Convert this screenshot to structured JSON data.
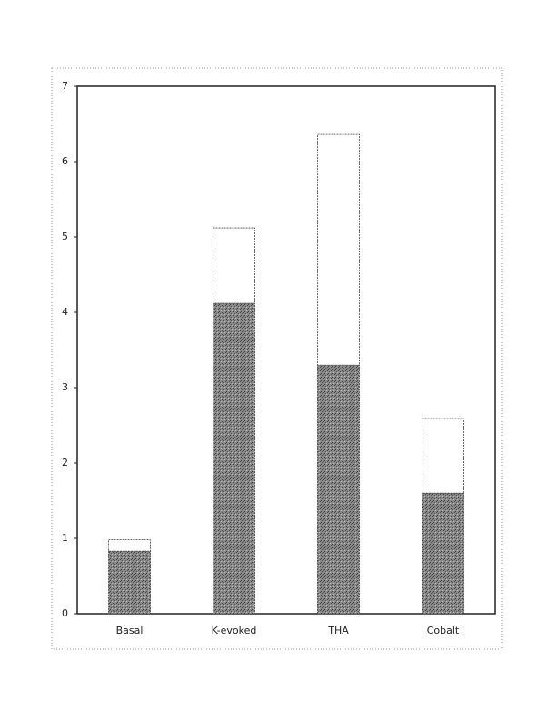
{
  "chart_data": {
    "type": "stacked_bar",
    "categories": [
      "Basal",
      "K-evoked",
      "THA",
      "Cobalt"
    ],
    "series": [
      {
        "color": "#7c7c7c",
        "values": [
          0.83,
          4.12,
          3.3,
          1.6
        ]
      },
      {
        "color": "#ffffff",
        "values": [
          0.15,
          1.0,
          3.06,
          0.99
        ]
      }
    ],
    "ylim": [
      0,
      7
    ],
    "yticks": [
      0,
      1,
      2,
      3,
      4,
      5,
      6,
      7
    ]
  }
}
